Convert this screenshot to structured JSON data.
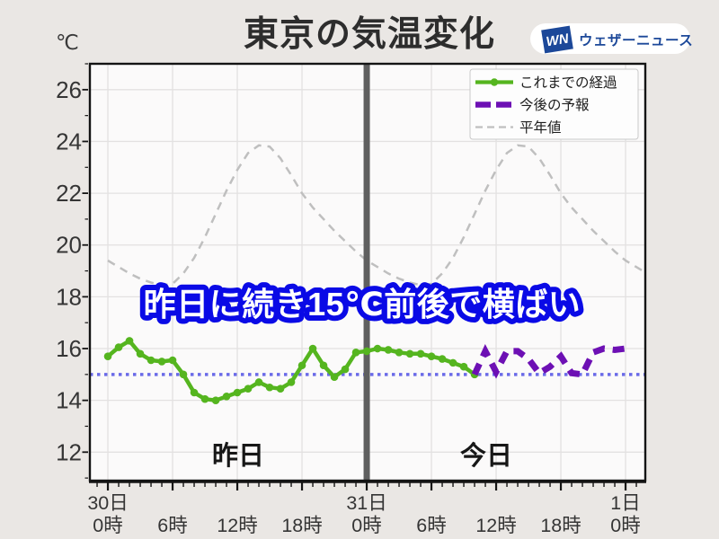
{
  "header": {
    "unit": "℃",
    "title": "東京の気温変化",
    "logo": {
      "mark": "WN",
      "name": "ウェザーニュース",
      "brand_color": "#1c4899"
    }
  },
  "chart_data": {
    "type": "line",
    "title": "東京の気温変化",
    "y_unit": "℃",
    "ylim": [
      10.9,
      27.0
    ],
    "yticks": [
      12,
      14,
      16,
      18,
      20,
      22,
      24,
      26
    ],
    "xlim_hours": [
      -1.67,
      49.83
    ],
    "xticks": [
      {
        "hour": 0,
        "day": "30日",
        "time": "0時"
      },
      {
        "hour": 6,
        "time": "6時"
      },
      {
        "hour": 12,
        "time": "12時"
      },
      {
        "hour": 18,
        "time": "18時"
      },
      {
        "hour": 24,
        "day": "31日",
        "time": "0時"
      },
      {
        "hour": 30,
        "time": "6時"
      },
      {
        "hour": 36,
        "time": "12時"
      },
      {
        "hour": 42,
        "time": "18時"
      },
      {
        "hour": 48,
        "day": "1日",
        "time": "0時"
      }
    ],
    "grid": true,
    "legend_position": "upper right",
    "series": [
      {
        "name": "これまでの経過",
        "style": "solid_with_markers",
        "color": "#55b51f",
        "width": 4.5,
        "hours": [
          0,
          1,
          2,
          3,
          4,
          5,
          6,
          7,
          8,
          9,
          10,
          11,
          12,
          13,
          14,
          15,
          16,
          17,
          18,
          19,
          20,
          21,
          22,
          23,
          24,
          25,
          26,
          27,
          28,
          29,
          30,
          31,
          32,
          33,
          34
        ],
        "values": [
          15.7,
          16.05,
          16.3,
          15.8,
          15.55,
          15.5,
          15.55,
          15.0,
          14.3,
          14.05,
          14.0,
          14.15,
          14.3,
          14.45,
          14.7,
          14.5,
          14.45,
          14.7,
          15.35,
          16.0,
          15.35,
          14.9,
          15.2,
          15.85,
          15.9,
          16.0,
          15.95,
          15.85,
          15.8,
          15.8,
          15.7,
          15.6,
          15.45,
          15.3,
          15.0
        ]
      },
      {
        "name": "今後の予報",
        "style": "thick_dashed",
        "color": "#6d10b4",
        "width": 7,
        "hours": [
          34,
          35,
          36,
          37,
          38,
          39,
          40,
          41,
          42,
          43,
          44,
          45,
          46,
          47,
          48
        ],
        "values": [
          15.0,
          15.9,
          15.1,
          15.9,
          15.9,
          15.6,
          15.05,
          15.3,
          15.7,
          15.05,
          15.0,
          15.85,
          16.0,
          15.95,
          16.0
        ]
      },
      {
        "name": "平年値",
        "style": "thin_dashed",
        "color": "#bfbfbf",
        "width": 2.5,
        "hours": [
          0,
          1,
          2,
          3,
          4,
          5,
          6,
          7,
          8,
          9,
          10,
          11,
          12,
          13,
          14,
          15,
          16,
          17,
          18,
          19,
          20,
          21,
          22,
          23,
          24,
          25,
          26,
          27,
          28,
          29,
          30,
          31,
          32,
          33,
          34,
          35,
          36,
          37,
          38,
          39,
          40,
          41,
          42,
          43,
          44,
          45,
          46,
          47,
          48,
          49,
          50
        ],
        "values": [
          19.4,
          19.15,
          18.9,
          18.7,
          18.55,
          18.45,
          18.5,
          18.9,
          19.5,
          20.3,
          21.2,
          22.1,
          22.9,
          23.55,
          23.85,
          23.8,
          23.35,
          22.7,
          22.0,
          21.45,
          21.0,
          20.55,
          20.15,
          19.75,
          19.4,
          19.15,
          18.9,
          18.7,
          18.55,
          18.45,
          18.5,
          18.9,
          19.5,
          20.3,
          21.2,
          22.1,
          22.9,
          23.55,
          23.85,
          23.8,
          23.35,
          22.7,
          22.0,
          21.45,
          21.0,
          20.55,
          20.15,
          19.75,
          19.4,
          19.15,
          18.9
        ]
      }
    ],
    "reference_line": {
      "value": 15,
      "color": "#6a6ae8",
      "style": "dotted"
    },
    "day_divider": {
      "hour": 24,
      "color": "#5f5f5f"
    },
    "annotation": {
      "text": "昨日に続き15℃前後で横ばい",
      "fill": "#ffffff",
      "outline": "#0a0ae6"
    },
    "day_labels": [
      {
        "text": "昨日"
      },
      {
        "text": "今日"
      }
    ]
  }
}
